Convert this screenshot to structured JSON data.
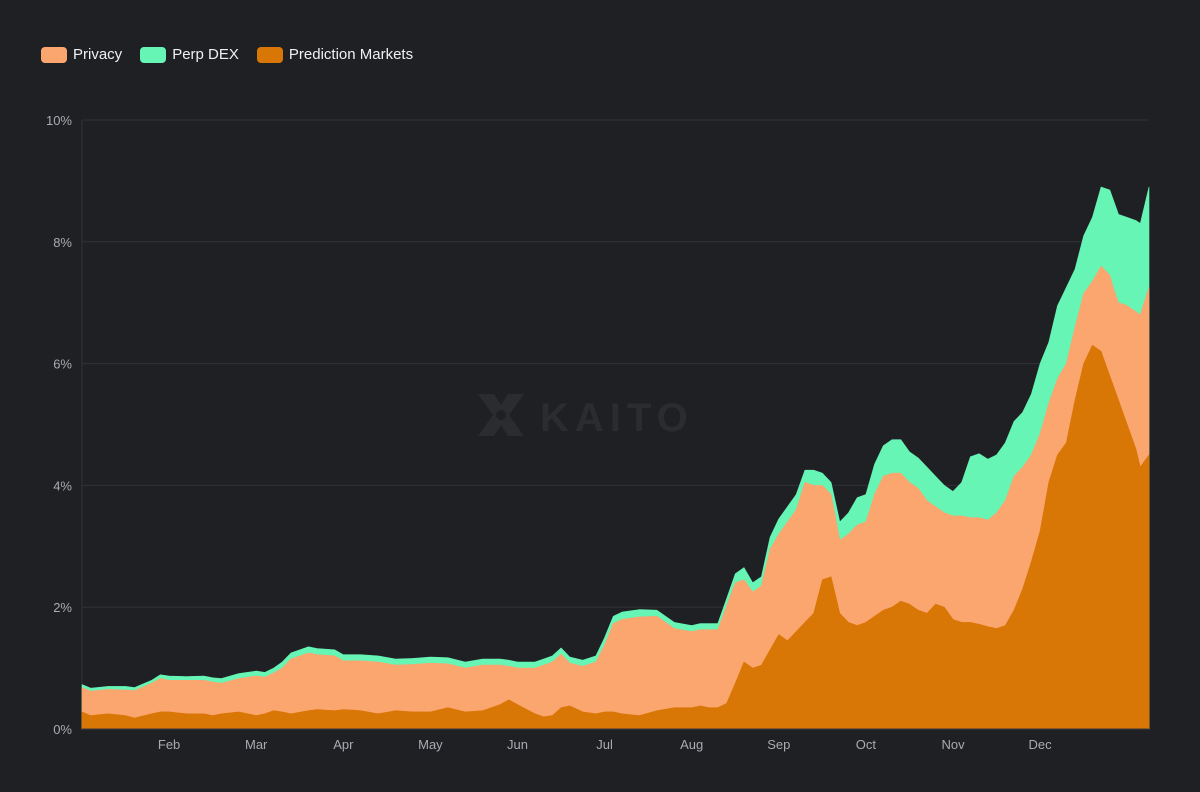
{
  "chart_data": {
    "type": "area",
    "stacked": true,
    "title": "",
    "xlabel": "",
    "ylabel": "",
    "ylim": [
      0,
      10
    ],
    "y_ticks": [
      0,
      2,
      4,
      6,
      8,
      10
    ],
    "y_tick_labels": [
      "0%",
      "2%",
      "4%",
      "6%",
      "8%",
      "10%"
    ],
    "x_range": [
      0,
      12.25
    ],
    "x_ticks": [
      1,
      2,
      3,
      4,
      5,
      6,
      7,
      8,
      9,
      10,
      11
    ],
    "x_tick_labels": [
      "Feb",
      "Mar",
      "Apr",
      "May",
      "Jun",
      "Jul",
      "Aug",
      "Sep",
      "Oct",
      "Nov",
      "Dec"
    ],
    "grid": true,
    "legend_position": "top-left",
    "x": [
      0,
      0.1,
      0.3,
      0.5,
      0.6,
      0.8,
      0.9,
      1.0,
      1.2,
      1.4,
      1.5,
      1.6,
      1.8,
      2.0,
      2.1,
      2.2,
      2.3,
      2.4,
      2.6,
      2.7,
      2.9,
      3.0,
      3.2,
      3.4,
      3.6,
      3.8,
      4.0,
      4.2,
      4.4,
      4.6,
      4.8,
      4.9,
      5.0,
      5.2,
      5.3,
      5.4,
      5.5,
      5.6,
      5.75,
      5.9,
      6.0,
      6.1,
      6.2,
      6.4,
      6.6,
      6.8,
      7.0,
      7.1,
      7.2,
      7.3,
      7.4,
      7.5,
      7.6,
      7.7,
      7.8,
      7.9,
      8.0,
      8.1,
      8.2,
      8.3,
      8.4,
      8.5,
      8.6,
      8.7,
      8.8,
      8.9,
      9.0,
      9.1,
      9.2,
      9.3,
      9.4,
      9.5,
      9.6,
      9.7,
      9.8,
      9.9,
      10.0,
      10.1,
      10.2,
      10.3,
      10.4,
      10.5,
      10.6,
      10.7,
      10.8,
      10.9,
      11.0,
      11.1,
      11.2,
      11.3,
      11.4,
      11.5,
      11.6,
      11.7,
      11.8,
      11.85,
      11.9,
      12.0,
      12.1,
      12.15,
      12.25
    ],
    "series": [
      {
        "name": "Prediction Markets",
        "color": "#d97706",
        "values": [
          0.28,
          0.22,
          0.25,
          0.22,
          0.18,
          0.25,
          0.28,
          0.28,
          0.25,
          0.25,
          0.22,
          0.25,
          0.28,
          0.22,
          0.25,
          0.3,
          0.28,
          0.25,
          0.3,
          0.32,
          0.3,
          0.32,
          0.3,
          0.25,
          0.3,
          0.28,
          0.28,
          0.35,
          0.28,
          0.3,
          0.4,
          0.48,
          0.4,
          0.25,
          0.2,
          0.22,
          0.35,
          0.38,
          0.28,
          0.25,
          0.28,
          0.28,
          0.25,
          0.22,
          0.3,
          0.35,
          0.35,
          0.38,
          0.35,
          0.35,
          0.42,
          0.75,
          1.1,
          1.0,
          1.05,
          1.3,
          1.55,
          1.45,
          1.6,
          1.75,
          1.9,
          2.45,
          2.5,
          1.9,
          1.75,
          1.7,
          1.75,
          1.85,
          1.95,
          2.0,
          2.1,
          2.05,
          1.95,
          1.9,
          2.05,
          2.0,
          1.8,
          1.75,
          1.75,
          1.72,
          1.68,
          1.65,
          1.7,
          1.95,
          2.3,
          2.75,
          3.25,
          4.05,
          4.5,
          4.7,
          5.4,
          6.0,
          6.3,
          6.2,
          5.8,
          5.6,
          5.4,
          5.0,
          4.6,
          4.3,
          4.5
        ]
      },
      {
        "name": "Privacy",
        "color": "#fba56f",
        "values": [
          0.4,
          0.4,
          0.4,
          0.42,
          0.45,
          0.5,
          0.55,
          0.52,
          0.55,
          0.55,
          0.55,
          0.5,
          0.55,
          0.65,
          0.6,
          0.62,
          0.72,
          0.9,
          0.95,
          0.9,
          0.9,
          0.8,
          0.82,
          0.85,
          0.75,
          0.78,
          0.8,
          0.72,
          0.72,
          0.75,
          0.65,
          0.55,
          0.6,
          0.75,
          0.85,
          0.88,
          0.88,
          0.7,
          0.75,
          0.85,
          1.1,
          1.45,
          1.55,
          1.62,
          1.55,
          1.3,
          1.25,
          1.25,
          1.28,
          1.28,
          1.6,
          1.65,
          1.35,
          1.25,
          1.3,
          1.65,
          1.65,
          1.95,
          2.0,
          2.3,
          2.1,
          1.55,
          1.35,
          1.2,
          1.45,
          1.65,
          1.65,
          2.0,
          2.2,
          2.2,
          2.1,
          2.0,
          2.0,
          1.85,
          1.6,
          1.55,
          1.7,
          1.75,
          1.72,
          1.75,
          1.75,
          1.9,
          2.05,
          2.2,
          2.0,
          1.75,
          1.6,
          1.3,
          1.25,
          1.3,
          1.2,
          1.15,
          1.05,
          1.4,
          1.65,
          1.6,
          1.6,
          1.95,
          2.25,
          2.5,
          2.75
        ]
      },
      {
        "name": "Perp DEX",
        "color": "#66f5b5",
        "values": [
          0.05,
          0.05,
          0.05,
          0.06,
          0.05,
          0.05,
          0.06,
          0.07,
          0.06,
          0.07,
          0.07,
          0.08,
          0.08,
          0.08,
          0.08,
          0.08,
          0.1,
          0.1,
          0.1,
          0.1,
          0.1,
          0.1,
          0.1,
          0.1,
          0.1,
          0.1,
          0.1,
          0.1,
          0.1,
          0.1,
          0.1,
          0.1,
          0.1,
          0.1,
          0.1,
          0.1,
          0.1,
          0.1,
          0.1,
          0.1,
          0.12,
          0.12,
          0.12,
          0.12,
          0.1,
          0.1,
          0.1,
          0.1,
          0.1,
          0.1,
          0.12,
          0.15,
          0.2,
          0.15,
          0.15,
          0.2,
          0.25,
          0.25,
          0.25,
          0.2,
          0.25,
          0.2,
          0.2,
          0.3,
          0.35,
          0.45,
          0.45,
          0.5,
          0.5,
          0.55,
          0.55,
          0.5,
          0.5,
          0.55,
          0.5,
          0.45,
          0.4,
          0.55,
          1.0,
          1.05,
          1.0,
          0.95,
          0.95,
          0.9,
          0.9,
          1.0,
          1.15,
          1.0,
          1.2,
          1.25,
          0.95,
          0.95,
          1.05,
          1.3,
          1.4,
          1.45,
          1.45,
          1.45,
          1.5,
          1.5,
          1.65
        ]
      }
    ],
    "watermark": "KAITO"
  }
}
